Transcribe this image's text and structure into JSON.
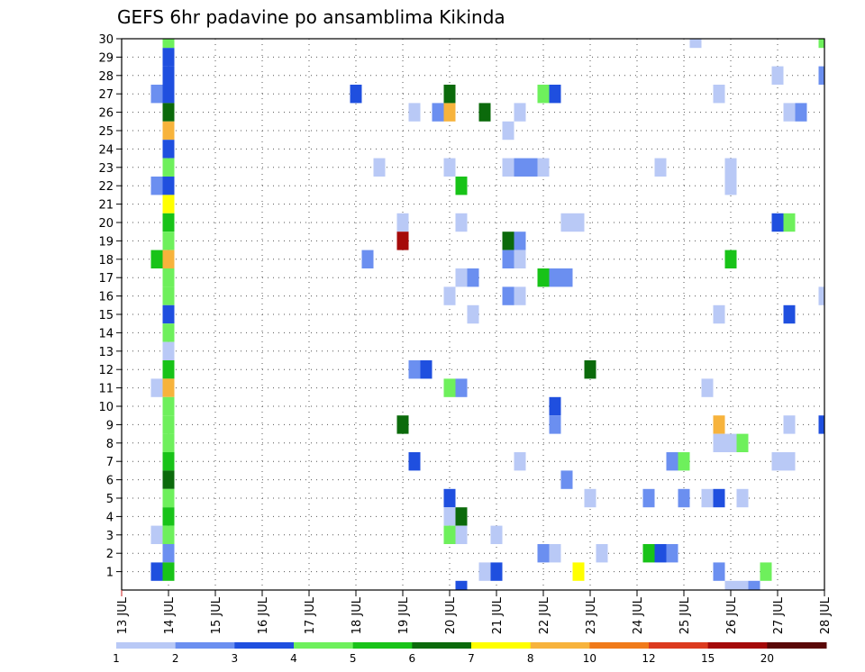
{
  "chart_data": {
    "type": "heatmap",
    "title": "GEFS 6hr padavine po ansamblima Kikinda",
    "x_axis": {
      "labels": [
        "13 JUL",
        "14 JUL",
        "15 JUL",
        "16 JUL",
        "17 JUL",
        "18 JUL",
        "19 JUL",
        "20 JUL",
        "21 JUL",
        "22 JUL",
        "23 JUL",
        "24 JUL",
        "25 JUL",
        "26 JUL",
        "27 JUL",
        "28 JUL"
      ],
      "range_days": [
        13,
        28
      ],
      "step_hours": 6,
      "orientation": "vertical-text"
    },
    "y_axis": {
      "labels": [
        1,
        2,
        3,
        4,
        5,
        6,
        7,
        8,
        9,
        10,
        11,
        12,
        13,
        14,
        15,
        16,
        17,
        18,
        19,
        20,
        21,
        22,
        23,
        24,
        25,
        26,
        27,
        28,
        29,
        30
      ],
      "range": [
        0,
        30
      ],
      "meaning": "ensemble member"
    },
    "grid": "dotted",
    "legend": {
      "placement": "bottom",
      "labels": [
        "1",
        "2",
        "3",
        "4",
        "5",
        "6",
        "7",
        "8",
        "10",
        "12",
        "15",
        "20"
      ],
      "colors": [
        "#b9c9f6",
        "#6b8ff0",
        "#1f4fdf",
        "#6ef05c",
        "#18c318",
        "#0b6a0b",
        "#ffff00",
        "#f7b33c",
        "#f07a1a",
        "#dc3a1e",
        "#a50a0a",
        "#5a0808"
      ]
    },
    "cells": [
      {
        "m": 30,
        "t": 14.0,
        "c": 3
      },
      {
        "m": 29,
        "t": 14.0,
        "c": 2
      },
      {
        "m": 28,
        "t": 14.0,
        "c": 2
      },
      {
        "m": 27,
        "t": 14.0,
        "c": 2
      },
      {
        "m": 26,
        "t": 14.0,
        "c": 5
      },
      {
        "m": 25,
        "t": 14.0,
        "c": 7
      },
      {
        "m": 24,
        "t": 14.0,
        "c": 2
      },
      {
        "m": 23,
        "t": 14.0,
        "c": 3
      },
      {
        "m": 22,
        "t": 14.0,
        "c": 2
      },
      {
        "m": 21,
        "t": 14.0,
        "c": 6
      },
      {
        "m": 20,
        "t": 14.0,
        "c": 4
      },
      {
        "m": 19,
        "t": 14.0,
        "c": 3
      },
      {
        "m": 18,
        "t": 14.0,
        "c": 7
      },
      {
        "m": 17,
        "t": 14.0,
        "c": 3
      },
      {
        "m": 16,
        "t": 14.0,
        "c": 3
      },
      {
        "m": 15,
        "t": 14.0,
        "c": 2
      },
      {
        "m": 14,
        "t": 14.0,
        "c": 3
      },
      {
        "m": 13,
        "t": 14.0,
        "c": 0
      },
      {
        "m": 12,
        "t": 14.0,
        "c": 4
      },
      {
        "m": 11,
        "t": 14.0,
        "c": 7
      },
      {
        "m": 10,
        "t": 14.0,
        "c": 3
      },
      {
        "m": 9,
        "t": 14.0,
        "c": 3
      },
      {
        "m": 8,
        "t": 14.0,
        "c": 3
      },
      {
        "m": 7,
        "t": 14.0,
        "c": 4
      },
      {
        "m": 6,
        "t": 14.0,
        "c": 5
      },
      {
        "m": 5,
        "t": 14.0,
        "c": 3
      },
      {
        "m": 4,
        "t": 14.0,
        "c": 4
      },
      {
        "m": 3,
        "t": 14.0,
        "c": 3
      },
      {
        "m": 2,
        "t": 14.0,
        "c": 1
      },
      {
        "m": 1,
        "t": 14.0,
        "c": 4
      },
      {
        "m": 27,
        "t": 13.75,
        "c": 1
      },
      {
        "m": 22,
        "t": 13.75,
        "c": 1
      },
      {
        "m": 18,
        "t": 13.75,
        "c": 4
      },
      {
        "m": 11,
        "t": 13.75,
        "c": 0
      },
      {
        "m": 3,
        "t": 13.75,
        "c": 0
      },
      {
        "m": 1,
        "t": 13.75,
        "c": 2
      },
      {
        "m": 27,
        "t": 18.0,
        "c": 2
      },
      {
        "m": 26,
        "t": 19.25,
        "c": 0
      },
      {
        "m": 26,
        "t": 19.75,
        "c": 1
      },
      {
        "m": 26,
        "t": 20.0,
        "c": 7
      },
      {
        "m": 27,
        "t": 20.0,
        "c": 5
      },
      {
        "m": 26,
        "t": 20.75,
        "c": 5
      },
      {
        "m": 26,
        "t": 21.5,
        "c": 0
      },
      {
        "m": 27,
        "t": 22.0,
        "c": 3
      },
      {
        "m": 27,
        "t": 22.25,
        "c": 2
      },
      {
        "m": 27,
        "t": 25.75,
        "c": 0
      },
      {
        "m": 30,
        "t": 25.25,
        "c": 0
      },
      {
        "m": 30,
        "t": 28.0,
        "c": 3
      },
      {
        "m": 28,
        "t": 27.0,
        "c": 0
      },
      {
        "m": 28,
        "t": 28.0,
        "c": 1
      },
      {
        "m": 26,
        "t": 27.25,
        "c": 0
      },
      {
        "m": 26,
        "t": 27.5,
        "c": 1
      },
      {
        "m": 25,
        "t": 21.25,
        "c": 0
      },
      {
        "m": 23,
        "t": 18.5,
        "c": 0
      },
      {
        "m": 23,
        "t": 20.0,
        "c": 0
      },
      {
        "m": 23,
        "t": 21.25,
        "c": 0
      },
      {
        "m": 23,
        "t": 21.5,
        "c": 1
      },
      {
        "m": 23,
        "t": 21.75,
        "c": 1
      },
      {
        "m": 23,
        "t": 22.0,
        "c": 0
      },
      {
        "m": 23,
        "t": 24.5,
        "c": 0
      },
      {
        "m": 23,
        "t": 26.0,
        "c": 0
      },
      {
        "m": 22,
        "t": 20.25,
        "c": 4
      },
      {
        "m": 22,
        "t": 26.0,
        "c": 0
      },
      {
        "m": 20,
        "t": 19.0,
        "c": 0
      },
      {
        "m": 20,
        "t": 20.25,
        "c": 0
      },
      {
        "m": 20,
        "t": 22.5,
        "c": 0
      },
      {
        "m": 20,
        "t": 22.75,
        "c": 0
      },
      {
        "m": 20,
        "t": 27.0,
        "c": 2
      },
      {
        "m": 20,
        "t": 27.25,
        "c": 3
      },
      {
        "m": 19,
        "t": 19.0,
        "c": 10
      },
      {
        "m": 19,
        "t": 21.25,
        "c": 5
      },
      {
        "m": 19,
        "t": 21.5,
        "c": 1
      },
      {
        "m": 18,
        "t": 18.25,
        "c": 1
      },
      {
        "m": 18,
        "t": 21.25,
        "c": 1
      },
      {
        "m": 18,
        "t": 21.5,
        "c": 0
      },
      {
        "m": 18,
        "t": 26.0,
        "c": 4
      },
      {
        "m": 17,
        "t": 20.25,
        "c": 0
      },
      {
        "m": 17,
        "t": 20.5,
        "c": 1
      },
      {
        "m": 17,
        "t": 22.0,
        "c": 4
      },
      {
        "m": 17,
        "t": 22.25,
        "c": 1
      },
      {
        "m": 17,
        "t": 22.5,
        "c": 1
      },
      {
        "m": 16,
        "t": 20.0,
        "c": 0
      },
      {
        "m": 16,
        "t": 21.25,
        "c": 1
      },
      {
        "m": 16,
        "t": 21.5,
        "c": 0
      },
      {
        "m": 16,
        "t": 28.0,
        "c": 0
      },
      {
        "m": 15,
        "t": 20.5,
        "c": 0
      },
      {
        "m": 15,
        "t": 25.75,
        "c": 0
      },
      {
        "m": 15,
        "t": 27.25,
        "c": 2
      },
      {
        "m": 12,
        "t": 19.25,
        "c": 1
      },
      {
        "m": 12,
        "t": 19.5,
        "c": 2
      },
      {
        "m": 12,
        "t": 23.0,
        "c": 5
      },
      {
        "m": 11,
        "t": 20.0,
        "c": 3
      },
      {
        "m": 11,
        "t": 20.25,
        "c": 1
      },
      {
        "m": 11,
        "t": 25.5,
        "c": 0
      },
      {
        "m": 10,
        "t": 22.25,
        "c": 2
      },
      {
        "m": 9,
        "t": 19.0,
        "c": 5
      },
      {
        "m": 9,
        "t": 22.25,
        "c": 1
      },
      {
        "m": 9,
        "t": 25.75,
        "c": 7
      },
      {
        "m": 9,
        "t": 27.25,
        "c": 0
      },
      {
        "m": 9,
        "t": 28.0,
        "c": 2
      },
      {
        "m": 8,
        "t": 25.75,
        "c": 0
      },
      {
        "m": 8,
        "t": 26.0,
        "c": 0
      },
      {
        "m": 8,
        "t": 26.25,
        "c": 3
      },
      {
        "m": 7,
        "t": 19.25,
        "c": 2
      },
      {
        "m": 7,
        "t": 21.5,
        "c": 0
      },
      {
        "m": 7,
        "t": 24.75,
        "c": 1
      },
      {
        "m": 7,
        "t": 25.0,
        "c": 3
      },
      {
        "m": 7,
        "t": 27.0,
        "c": 0
      },
      {
        "m": 7,
        "t": 27.25,
        "c": 0
      },
      {
        "m": 6,
        "t": 22.5,
        "c": 1
      },
      {
        "m": 5,
        "t": 20.0,
        "c": 2
      },
      {
        "m": 5,
        "t": 23.0,
        "c": 0
      },
      {
        "m": 5,
        "t": 24.25,
        "c": 1
      },
      {
        "m": 5,
        "t": 25.0,
        "c": 1
      },
      {
        "m": 5,
        "t": 25.5,
        "c": 0
      },
      {
        "m": 5,
        "t": 25.75,
        "c": 2
      },
      {
        "m": 5,
        "t": 26.25,
        "c": 0
      },
      {
        "m": 4,
        "t": 20.0,
        "c": 0
      },
      {
        "m": 4,
        "t": 20.25,
        "c": 5
      },
      {
        "m": 3,
        "t": 20.0,
        "c": 3
      },
      {
        "m": 3,
        "t": 20.25,
        "c": 0
      },
      {
        "m": 3,
        "t": 21.0,
        "c": 0
      },
      {
        "m": 2,
        "t": 22.0,
        "c": 1
      },
      {
        "m": 2,
        "t": 22.25,
        "c": 0
      },
      {
        "m": 2,
        "t": 23.25,
        "c": 0
      },
      {
        "m": 2,
        "t": 24.25,
        "c": 4
      },
      {
        "m": 2,
        "t": 24.5,
        "c": 2
      },
      {
        "m": 2,
        "t": 24.75,
        "c": 1
      },
      {
        "m": 1,
        "t": 20.75,
        "c": 0
      },
      {
        "m": 1,
        "t": 21.0,
        "c": 2
      },
      {
        "m": 1,
        "t": 22.75,
        "c": 6
      },
      {
        "m": 1,
        "t": 25.75,
        "c": 1
      },
      {
        "m": 1,
        "t": 26.75,
        "c": 3
      },
      {
        "m": 0,
        "t": 20.25,
        "c": 2
      },
      {
        "m": 0,
        "t": 26.0,
        "c": 0
      },
      {
        "m": 0,
        "t": 26.25,
        "c": 0
      },
      {
        "m": 0,
        "t": 26.5,
        "c": 1
      }
    ]
  }
}
